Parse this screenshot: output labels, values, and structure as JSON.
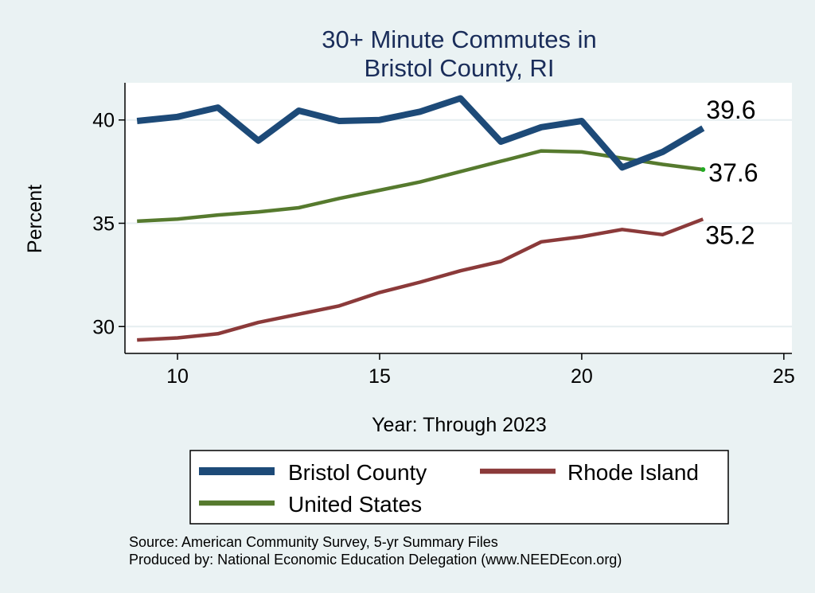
{
  "chart_data": {
    "type": "line",
    "title": [
      "30+ Minute Commutes in",
      "Bristol County, RI"
    ],
    "xlabel": "Year: Through 2023",
    "ylabel": "Percent",
    "xlim": [
      8.7,
      25.2
    ],
    "ylim": [
      28.7,
      41.8
    ],
    "x_ticks": [
      10,
      15,
      20,
      25
    ],
    "y_ticks": [
      30,
      35,
      40
    ],
    "grid": true,
    "x": [
      9,
      10,
      11,
      12,
      13,
      14,
      15,
      16,
      17,
      18,
      19,
      20,
      21,
      22,
      23
    ],
    "series": [
      {
        "name": "Bristol County",
        "color": "#1d4a78",
        "values": [
          39.95,
          40.15,
          40.6,
          39.0,
          40.45,
          39.95,
          40.0,
          40.4,
          41.05,
          38.95,
          39.65,
          39.95,
          37.7,
          38.45,
          39.6
        ],
        "end_label": "39.6"
      },
      {
        "name": "Rhode Island",
        "color": "#8b3a3a",
        "values": [
          29.35,
          29.45,
          29.65,
          30.2,
          30.6,
          31.0,
          31.65,
          32.15,
          32.7,
          33.15,
          34.1,
          34.35,
          34.7,
          34.45,
          35.2
        ],
        "end_label": "35.2"
      },
      {
        "name": "United States",
        "color": "#567a2e",
        "values": [
          35.1,
          35.2,
          35.4,
          35.55,
          35.75,
          36.2,
          36.6,
          37.0,
          37.5,
          38.0,
          38.5,
          38.45,
          38.15,
          37.85,
          37.6
        ],
        "end_label": "37.6"
      }
    ],
    "legend": {
      "placement": "bottom",
      "items": [
        "Bristol County",
        "Rhode Island",
        "United States"
      ]
    }
  },
  "notes": {
    "source": "Source: American Community Survey, 5-yr Summary Files",
    "produced": "Produced by: National Economic Education Delegation (www.NEEDEcon.org)"
  }
}
